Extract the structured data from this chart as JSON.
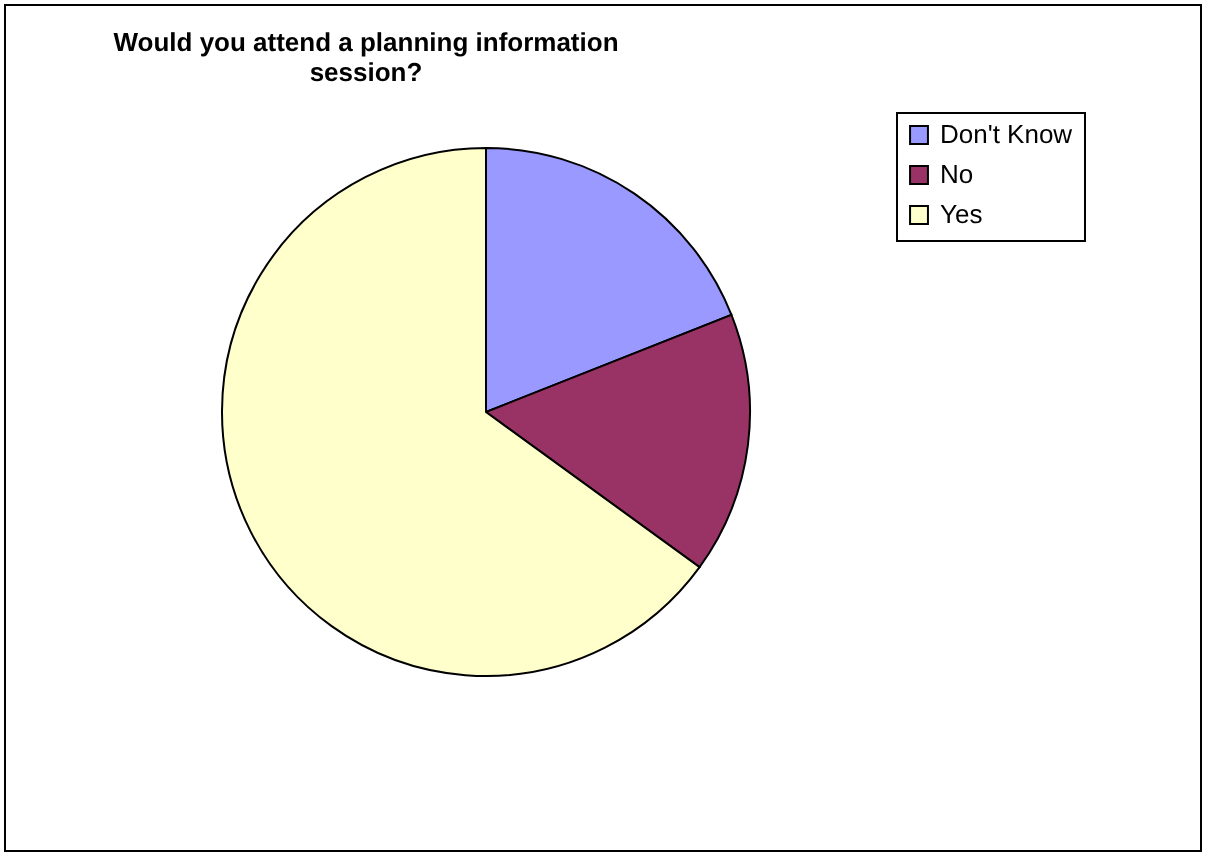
{
  "chart_data": {
    "type": "pie",
    "title": "Would you attend a planning information session?",
    "categories": [
      "Don't Know",
      "No",
      "Yes"
    ],
    "values": [
      19,
      16,
      65
    ],
    "colors": [
      "#9999ff",
      "#993366",
      "#ffffcc"
    ],
    "legend": "right"
  }
}
